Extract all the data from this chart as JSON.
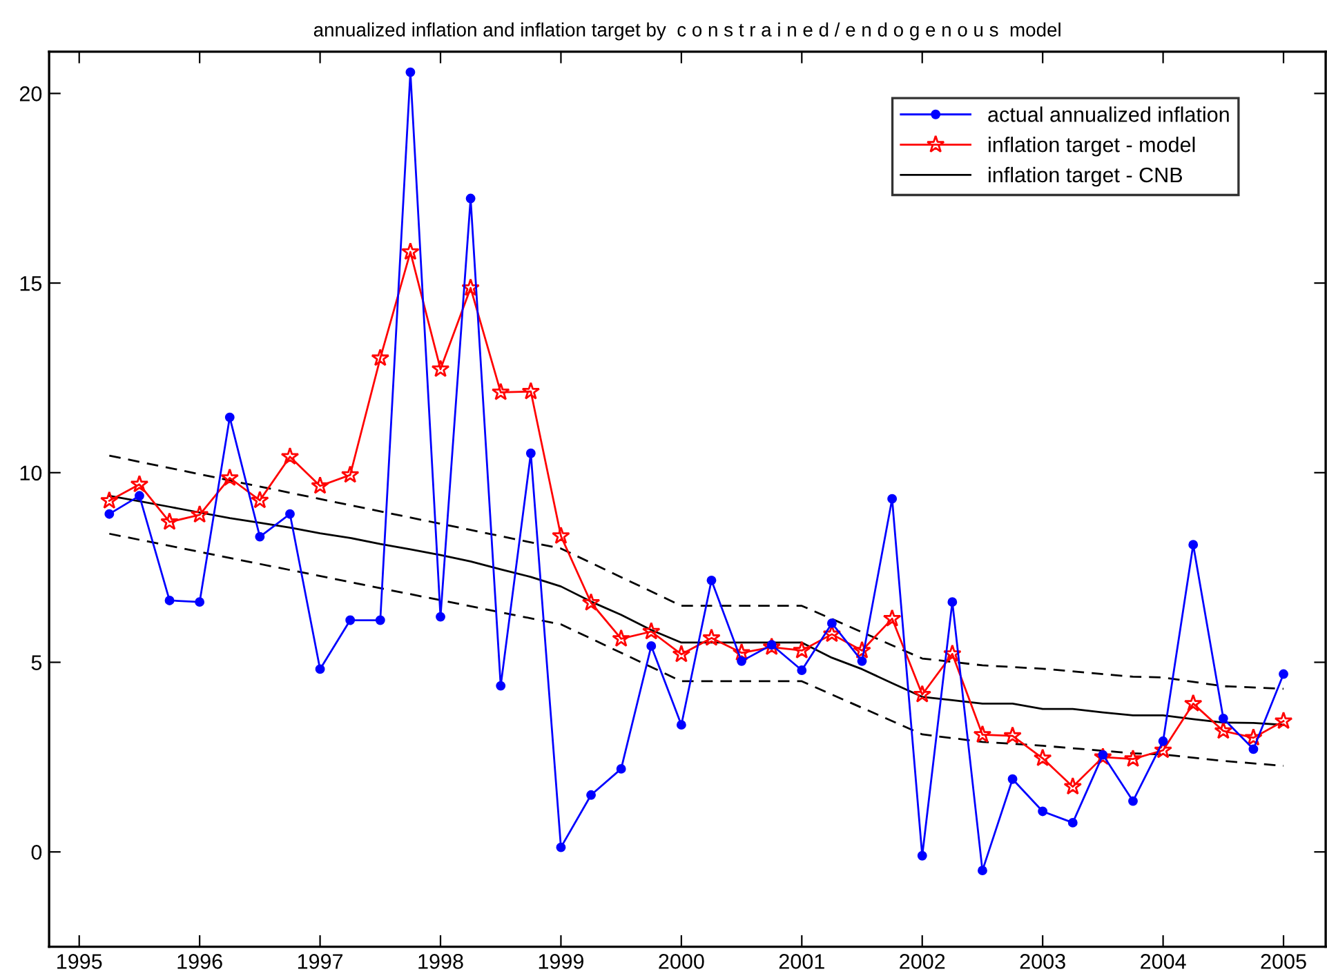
{
  "chart_data": {
    "type": "line",
    "title": "annualized inflation and inflation target by  c o n s t r a i n e d / e n d o g e n o u s  model",
    "x": [
      1995.25,
      1995.5,
      1995.75,
      1996,
      1996.25,
      1996.5,
      1996.75,
      1997,
      1997.25,
      1997.5,
      1997.75,
      1998,
      1998.25,
      1998.5,
      1998.75,
      1999,
      1999.25,
      1999.5,
      1999.75,
      2000,
      2000.25,
      2000.5,
      2000.75,
      2001,
      2001.25,
      2001.5,
      2001.75,
      2002,
      2002.25,
      2002.5,
      2002.75,
      2003,
      2003.25,
      2003.5,
      2003.75,
      2004,
      2004.25,
      2004.5,
      2004.75,
      2005
    ],
    "series": [
      {
        "name": "actual annualized inflation",
        "color": "#0000ff",
        "marker": "circle",
        "values": [
          8.91,
          9.39,
          6.63,
          6.59,
          11.46,
          8.31,
          8.91,
          4.82,
          6.11,
          6.11,
          20.56,
          6.2,
          17.23,
          4.38,
          10.51,
          0.12,
          1.5,
          2.19,
          5.43,
          3.35,
          7.16,
          5.03,
          5.46,
          4.79,
          6.03,
          5.03,
          9.31,
          -0.1,
          6.59,
          -0.49,
          1.92,
          1.07,
          0.77,
          2.56,
          1.34,
          2.92,
          8.1,
          3.52,
          2.71,
          4.69
        ]
      },
      {
        "name": "inflation target - model",
        "color": "#ff0000",
        "marker": "star",
        "values": [
          9.26,
          9.69,
          8.7,
          8.89,
          9.86,
          9.27,
          10.42,
          9.65,
          9.94,
          13.02,
          15.82,
          12.73,
          14.87,
          12.12,
          12.14,
          8.33,
          6.57,
          5.62,
          5.81,
          5.21,
          5.64,
          5.25,
          5.4,
          5.31,
          5.74,
          5.31,
          6.15,
          4.15,
          5.22,
          3.09,
          3.06,
          2.47,
          1.72,
          2.5,
          2.45,
          2.68,
          3.91,
          3.19,
          3.01,
          3.45
        ]
      },
      {
        "name": "inflation target - CNB",
        "color": "#000000",
        "marker": "none",
        "values": [
          9.39,
          9.25,
          9.1,
          8.95,
          8.8,
          8.68,
          8.55,
          8.4,
          8.28,
          8.12,
          7.98,
          7.83,
          7.66,
          7.45,
          7.25,
          7.0,
          6.6,
          6.25,
          5.85,
          5.52,
          5.52,
          5.52,
          5.52,
          5.52,
          5.12,
          4.82,
          4.45,
          4.09,
          4.0,
          3.91,
          3.91,
          3.77,
          3.77,
          3.68,
          3.6,
          3.6,
          3.5,
          3.41,
          3.4,
          3.35
        ]
      },
      {
        "color": "#000000",
        "marker": "none",
        "line_style": "dashed",
        "x": [
          1995.25,
          1999,
          2000,
          2001,
          2002,
          2002.5,
          2003,
          2003.75,
          2004,
          2004.5,
          2005
        ],
        "values": [
          10.45,
          8.0,
          6.49,
          6.49,
          5.1,
          4.92,
          4.83,
          4.62,
          4.6,
          4.37,
          4.3
        ]
      },
      {
        "color": "#000000",
        "marker": "none",
        "line_style": "dashed",
        "x": [
          1995.25,
          1999,
          2000,
          2001,
          2002,
          2002.5,
          2003,
          2003.75,
          2004,
          2004.5,
          2005
        ],
        "values": [
          8.39,
          6.0,
          4.5,
          4.5,
          3.1,
          2.9,
          2.8,
          2.6,
          2.57,
          2.4,
          2.27
        ]
      }
    ],
    "xlim": [
      1994.75,
      2005.35
    ],
    "ylim": [
      -2.5,
      21.1
    ],
    "xticks": [
      1995,
      1996,
      1997,
      1998,
      1999,
      2000,
      2001,
      2002,
      2003,
      2004,
      2005
    ],
    "yticks": [
      0,
      5,
      10,
      15,
      20
    ],
    "grid": false,
    "legend": "top right"
  }
}
